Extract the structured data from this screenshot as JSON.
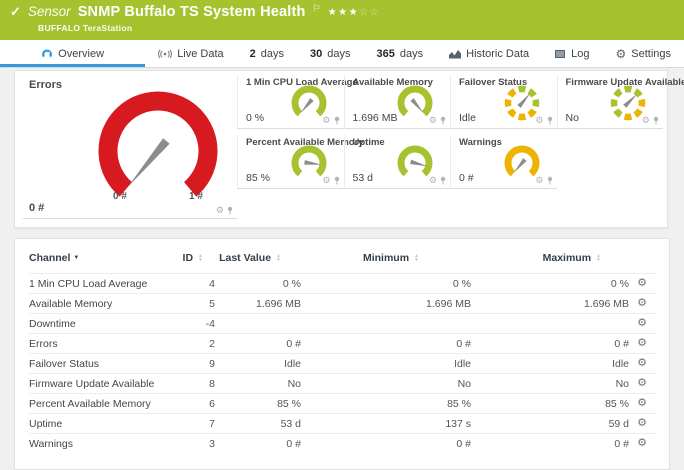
{
  "colors": {
    "brand_green": "#a6c22f",
    "gauge_red": "#d71920",
    "gauge_lime": "#a6c22f",
    "gauge_yellow": "#eeb200",
    "needle_grey": "#8c8c8c",
    "tab_active_blue": "#2f9bd8",
    "page_background": "#f0f0f0"
  },
  "header": {
    "check": "✓",
    "kind_label": "Sensor",
    "title": "SNMP Buffalo TS System Health",
    "flag": "⚐",
    "stars_filled": 3,
    "stars_total": 5,
    "subtitle": "BUFFALO TeraStation"
  },
  "tabs": [
    {
      "label": "Overview",
      "icon": "gauge-icon",
      "active": true
    },
    {
      "label": "Live Data",
      "icon": "live-data-icon",
      "active": false
    },
    {
      "num": "2",
      "label": "days",
      "active": false
    },
    {
      "num": "30",
      "label": "days",
      "active": false
    },
    {
      "num": "365",
      "label": "days",
      "active": false
    },
    {
      "label": "Historic Data",
      "icon": "historic-icon",
      "active": false
    },
    {
      "label": "Log",
      "icon": "log-icon",
      "active": false
    },
    {
      "label": "Settings",
      "icon": "settings-icon",
      "active": false
    }
  ],
  "gauges": {
    "main": {
      "label": "Errors",
      "value": "0 #",
      "scale_min": "0 #",
      "scale_max": "1 #",
      "color_key": "gauge_red",
      "needle_angle": -140
    },
    "small": [
      {
        "label": "1 Min CPU Load Average",
        "value": "0 %",
        "style": "arc",
        "color_key": "gauge_lime",
        "needle_angle": -140
      },
      {
        "label": "Available Memory",
        "value": "1.696 MB",
        "style": "arc",
        "color_key": "gauge_lime",
        "needle_angle": 140
      },
      {
        "label": "Failover Status",
        "value": "Idle",
        "style": "segmented",
        "segment_colors": [
          "lime",
          "lime",
          "lime",
          "yellow",
          "yellow",
          "yellow",
          "yellow",
          "yellow"
        ],
        "needle_angle": 40
      },
      {
        "label": "Firmware Update Available",
        "value": "No",
        "style": "segmented",
        "segment_colors": [
          "lime",
          "lime",
          "yellow",
          "yellow",
          "yellow",
          "lime",
          "lime",
          "lime"
        ],
        "needle_angle": 45
      },
      {
        "label": "Percent Available Memory",
        "value": "85 %",
        "style": "arc",
        "color_key": "gauge_lime",
        "needle_angle": 98
      },
      {
        "label": "Uptime",
        "value": "53 d",
        "style": "arc",
        "color_key": "gauge_lime",
        "needle_angle": 105
      },
      {
        "label": "Warnings",
        "value": "0 #",
        "style": "arc",
        "color_key": "gauge_yellow",
        "needle_angle": -140
      }
    ]
  },
  "table": {
    "columns": [
      "Channel",
      "ID",
      "Last Value",
      "Minimum",
      "Maximum"
    ],
    "sorted_by": "Channel",
    "rows": [
      {
        "name": "1 Min CPU Load Average",
        "id": "4",
        "last": "0 %",
        "min": "0 %",
        "max": "0 %"
      },
      {
        "name": "Available Memory",
        "id": "5",
        "last": "1.696 MB",
        "min": "1.696 MB",
        "max": "1.696 MB"
      },
      {
        "name": "Downtime",
        "id": "-4",
        "last": "",
        "min": "",
        "max": ""
      },
      {
        "name": "Errors",
        "id": "2",
        "last": "0 #",
        "min": "0 #",
        "max": "0 #"
      },
      {
        "name": "Failover Status",
        "id": "9",
        "last": "Idle",
        "min": "Idle",
        "max": "Idle"
      },
      {
        "name": "Firmware Update Available",
        "id": "8",
        "last": "No",
        "min": "No",
        "max": "No"
      },
      {
        "name": "Percent Available Memory",
        "id": "6",
        "last": "85 %",
        "min": "85 %",
        "max": "85 %"
      },
      {
        "name": "Uptime",
        "id": "7",
        "last": "53 d",
        "min": "137 s",
        "max": "59 d"
      },
      {
        "name": "Warnings",
        "id": "3",
        "last": "0 #",
        "min": "0 #",
        "max": "0 #"
      }
    ]
  }
}
